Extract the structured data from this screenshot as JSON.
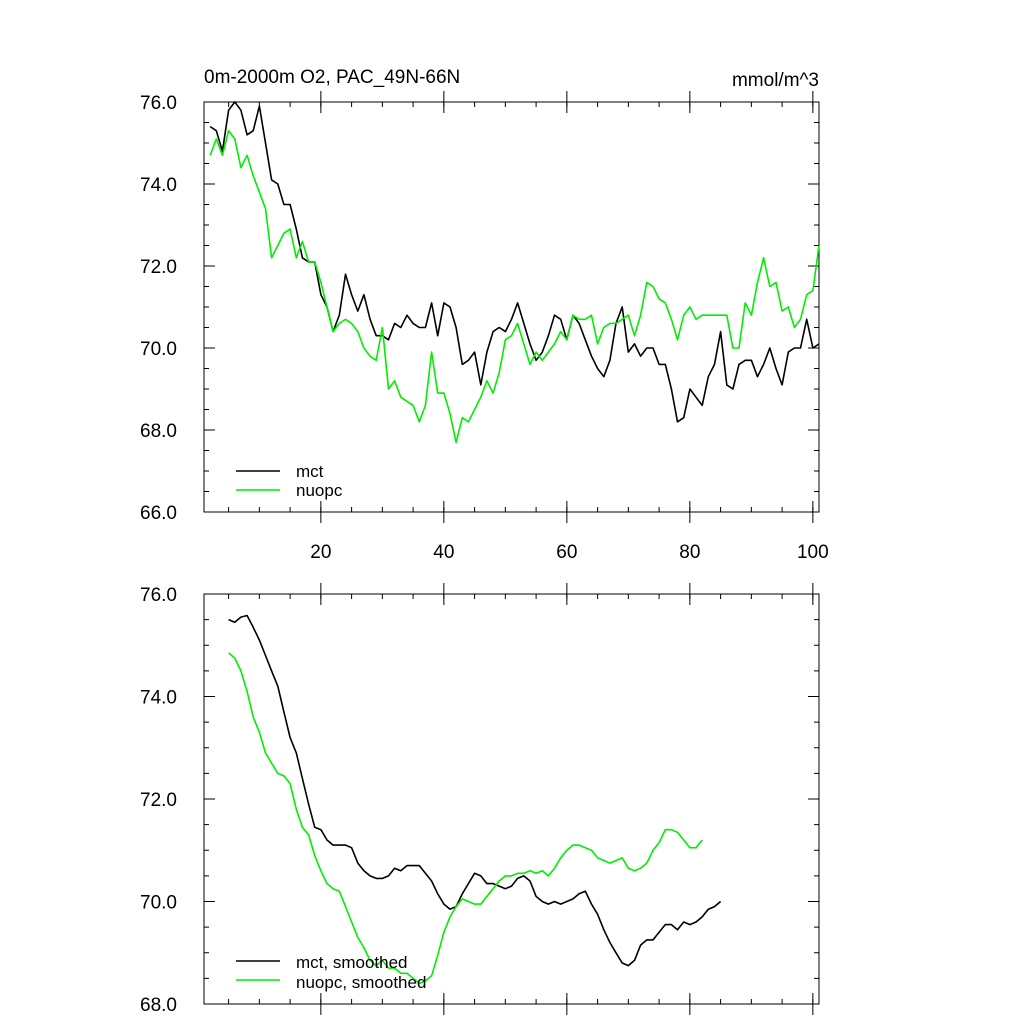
{
  "colors": {
    "axis": "#000000",
    "mct": "#000000",
    "nuopc": "#00ee00",
    "background": "#ffffff"
  },
  "chart_data": [
    {
      "type": "line",
      "title": "0m-2000m O2, PAC_49N-66N",
      "units": "mmol/m^3",
      "xlim": [
        1,
        101
      ],
      "ylim": [
        66,
        76
      ],
      "x_ticks": [
        20,
        40,
        60,
        80,
        100
      ],
      "x_tick_labels": [
        "20",
        "40",
        "60",
        "80",
        "100"
      ],
      "y_ticks": [
        66,
        68,
        70,
        72,
        74,
        76
      ],
      "y_tick_labels": [
        "66.0",
        "68.0",
        "70.0",
        "72.0",
        "74.0",
        "76.0"
      ],
      "legend_position": "bottom-left",
      "series": [
        {
          "name": "mct",
          "color": "#000000",
          "x_start": 2,
          "values": [
            75.4,
            75.3,
            74.8,
            75.8,
            76.0,
            75.8,
            75.2,
            75.3,
            75.9,
            75.0,
            74.1,
            74.0,
            73.5,
            73.5,
            72.9,
            72.2,
            72.1,
            72.1,
            71.3,
            71.0,
            70.4,
            70.8,
            71.8,
            71.3,
            70.9,
            71.3,
            70.7,
            70.3,
            70.3,
            70.2,
            70.6,
            70.5,
            70.8,
            70.6,
            70.5,
            70.5,
            71.1,
            70.3,
            71.1,
            71.0,
            70.5,
            69.6,
            69.7,
            69.9,
            69.1,
            69.9,
            70.4,
            70.5,
            70.4,
            70.7,
            71.1,
            70.6,
            70.1,
            69.7,
            69.9,
            70.3,
            70.8,
            70.7,
            70.2,
            70.8,
            70.6,
            70.2,
            69.8,
            69.5,
            69.3,
            69.7,
            70.6,
            71.0,
            69.9,
            70.1,
            69.8,
            70.0,
            70.0,
            69.6,
            69.6,
            69.0,
            68.2,
            68.3,
            69.0,
            68.8,
            68.6,
            69.3,
            69.6,
            70.4,
            69.1,
            69.0,
            69.6,
            69.7,
            69.7,
            69.3,
            69.6,
            70.0,
            69.5,
            69.1,
            69.9,
            70.0,
            70.0,
            70.7,
            70.0,
            70.1
          ]
        },
        {
          "name": "nuopc",
          "color": "#00ee00",
          "x_start": 2,
          "values": [
            74.7,
            75.1,
            74.7,
            75.3,
            75.1,
            74.4,
            74.7,
            74.2,
            73.8,
            73.4,
            72.2,
            72.5,
            72.8,
            72.9,
            72.2,
            72.6,
            72.1,
            72.1,
            71.6,
            71.0,
            70.4,
            70.6,
            70.7,
            70.6,
            70.4,
            70.0,
            69.8,
            69.7,
            70.5,
            69.0,
            69.2,
            68.8,
            68.7,
            68.6,
            68.2,
            68.6,
            69.9,
            68.9,
            68.9,
            68.4,
            67.7,
            68.3,
            68.2,
            68.5,
            68.8,
            69.2,
            68.9,
            69.4,
            70.2,
            70.3,
            70.6,
            70.1,
            69.6,
            69.9,
            69.7,
            69.9,
            70.1,
            70.4,
            70.2,
            70.8,
            70.7,
            70.7,
            70.8,
            70.1,
            70.5,
            70.6,
            70.6,
            70.7,
            70.8,
            70.3,
            70.8,
            71.6,
            71.5,
            71.2,
            71.1,
            70.7,
            70.2,
            70.8,
            71.0,
            70.7,
            70.8,
            70.8,
            70.8,
            70.8,
            70.8,
            70.0,
            70.0,
            71.1,
            70.8,
            71.6,
            72.2,
            71.5,
            71.6,
            70.9,
            71.0,
            70.5,
            70.7,
            71.3,
            71.4,
            72.5
          ]
        }
      ]
    },
    {
      "type": "line",
      "title": "",
      "xlim": [
        1,
        101
      ],
      "ylim": [
        68,
        76
      ],
      "x_ticks": [
        20,
        40,
        60,
        80,
        100
      ],
      "y_ticks": [
        68,
        70,
        72,
        74,
        76
      ],
      "y_tick_labels": [
        "68.0",
        "70.0",
        "72.0",
        "74.0",
        "76.0"
      ],
      "legend_position": "bottom-left",
      "series": [
        {
          "name": "mct, smoothed",
          "color": "#000000",
          "x_start": 5,
          "values": [
            75.5,
            75.45,
            75.55,
            75.58,
            75.35,
            75.1,
            74.8,
            74.5,
            74.2,
            73.7,
            73.2,
            72.9,
            72.4,
            71.9,
            71.45,
            71.4,
            71.2,
            71.1,
            71.1,
            71.1,
            71.05,
            70.75,
            70.6,
            70.5,
            70.45,
            70.45,
            70.5,
            70.65,
            70.6,
            70.7,
            70.7,
            70.7,
            70.55,
            70.4,
            70.15,
            69.95,
            69.85,
            69.9,
            70.15,
            70.35,
            70.55,
            70.5,
            70.35,
            70.35,
            70.3,
            70.25,
            70.3,
            70.45,
            70.5,
            70.4,
            70.1,
            70.0,
            69.95,
            70.0,
            69.95,
            70.0,
            70.05,
            70.15,
            70.2,
            69.95,
            69.75,
            69.45,
            69.2,
            69.0,
            68.8,
            68.75,
            68.85,
            69.15,
            69.25,
            69.25,
            69.4,
            69.55,
            69.55,
            69.45,
            69.6,
            69.55,
            69.6,
            69.7,
            69.85,
            69.9,
            70.0
          ]
        },
        {
          "name": "nuopc, smoothed",
          "color": "#00ee00",
          "x_start": 5,
          "values": [
            74.85,
            74.75,
            74.5,
            74.1,
            73.6,
            73.3,
            72.9,
            72.7,
            72.5,
            72.45,
            72.3,
            71.8,
            71.45,
            71.3,
            70.9,
            70.6,
            70.35,
            70.25,
            70.2,
            69.9,
            69.6,
            69.3,
            69.1,
            68.85,
            68.75,
            68.85,
            68.7,
            68.7,
            68.6,
            68.6,
            68.5,
            68.4,
            68.45,
            68.55,
            68.95,
            69.4,
            69.7,
            69.9,
            70.05,
            70.0,
            69.95,
            69.95,
            70.1,
            70.25,
            70.4,
            70.5,
            70.5,
            70.55,
            70.55,
            70.6,
            70.55,
            70.6,
            70.5,
            70.65,
            70.85,
            71.0,
            71.1,
            71.1,
            71.05,
            71.0,
            70.85,
            70.8,
            70.75,
            70.8,
            70.85,
            70.65,
            70.6,
            70.65,
            70.75,
            71.0,
            71.15,
            71.4,
            71.4,
            71.35,
            71.2,
            71.05,
            71.05,
            71.2
          ]
        }
      ]
    }
  ]
}
